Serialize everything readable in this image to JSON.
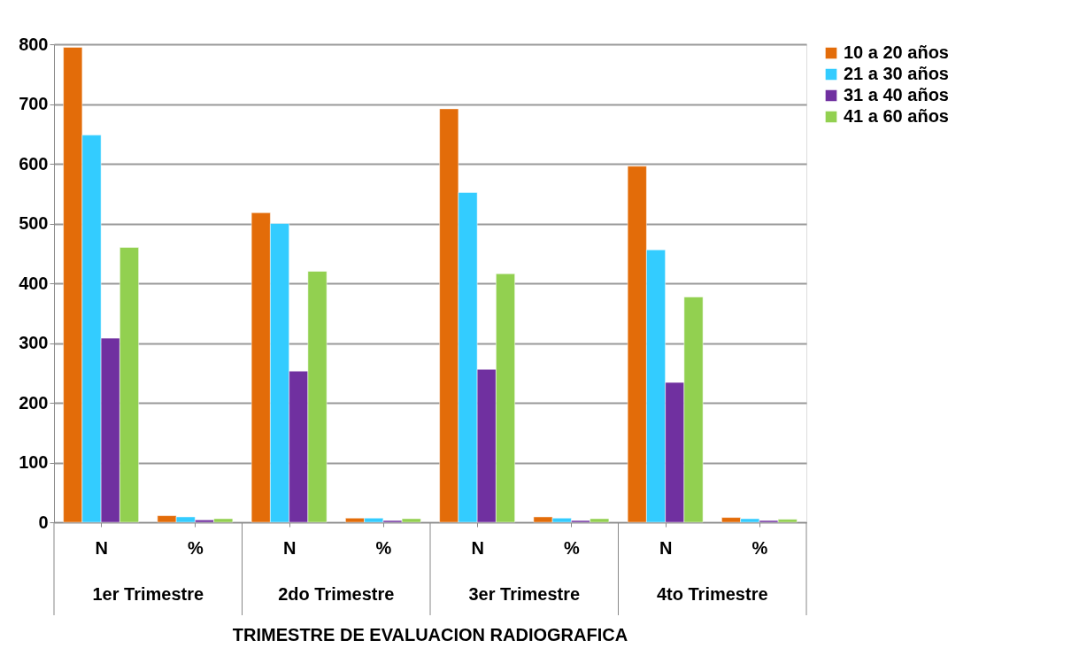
{
  "chart_data": {
    "type": "bar",
    "categories": [
      "N",
      "%",
      "N",
      "%",
      "N",
      "%",
      "N",
      "%"
    ],
    "xlabel": "TRIMESTRE DE EVALUACION RADIOGRAFICA",
    "annotations": [
      "1er Trimestre",
      "2do Trimestre",
      "3er Trimestre",
      "4to Trimestre"
    ],
    "series": [
      {
        "name": "10 a 20 años",
        "color": "#e36c09",
        "values": [
          795,
          11,
          518,
          7,
          692,
          9,
          596,
          8
        ]
      },
      {
        "name": "21 a 30 años",
        "color": "#33ccff",
        "values": [
          648,
          9,
          500,
          7,
          552,
          7,
          456,
          6
        ]
      },
      {
        "name": "31 a 40 años",
        "color": "#7030a0",
        "values": [
          308,
          4,
          253,
          3,
          256,
          3,
          234,
          3
        ]
      },
      {
        "name": "41 a 60 años",
        "color": "#92d050",
        "values": [
          460,
          6,
          420,
          6,
          416,
          6,
          377,
          5
        ]
      }
    ],
    "ylim": [
      0,
      800
    ],
    "yticks": [
      0,
      100,
      200,
      300,
      400,
      500,
      600,
      700,
      800
    ],
    "grid": "y",
    "legend": "right"
  }
}
